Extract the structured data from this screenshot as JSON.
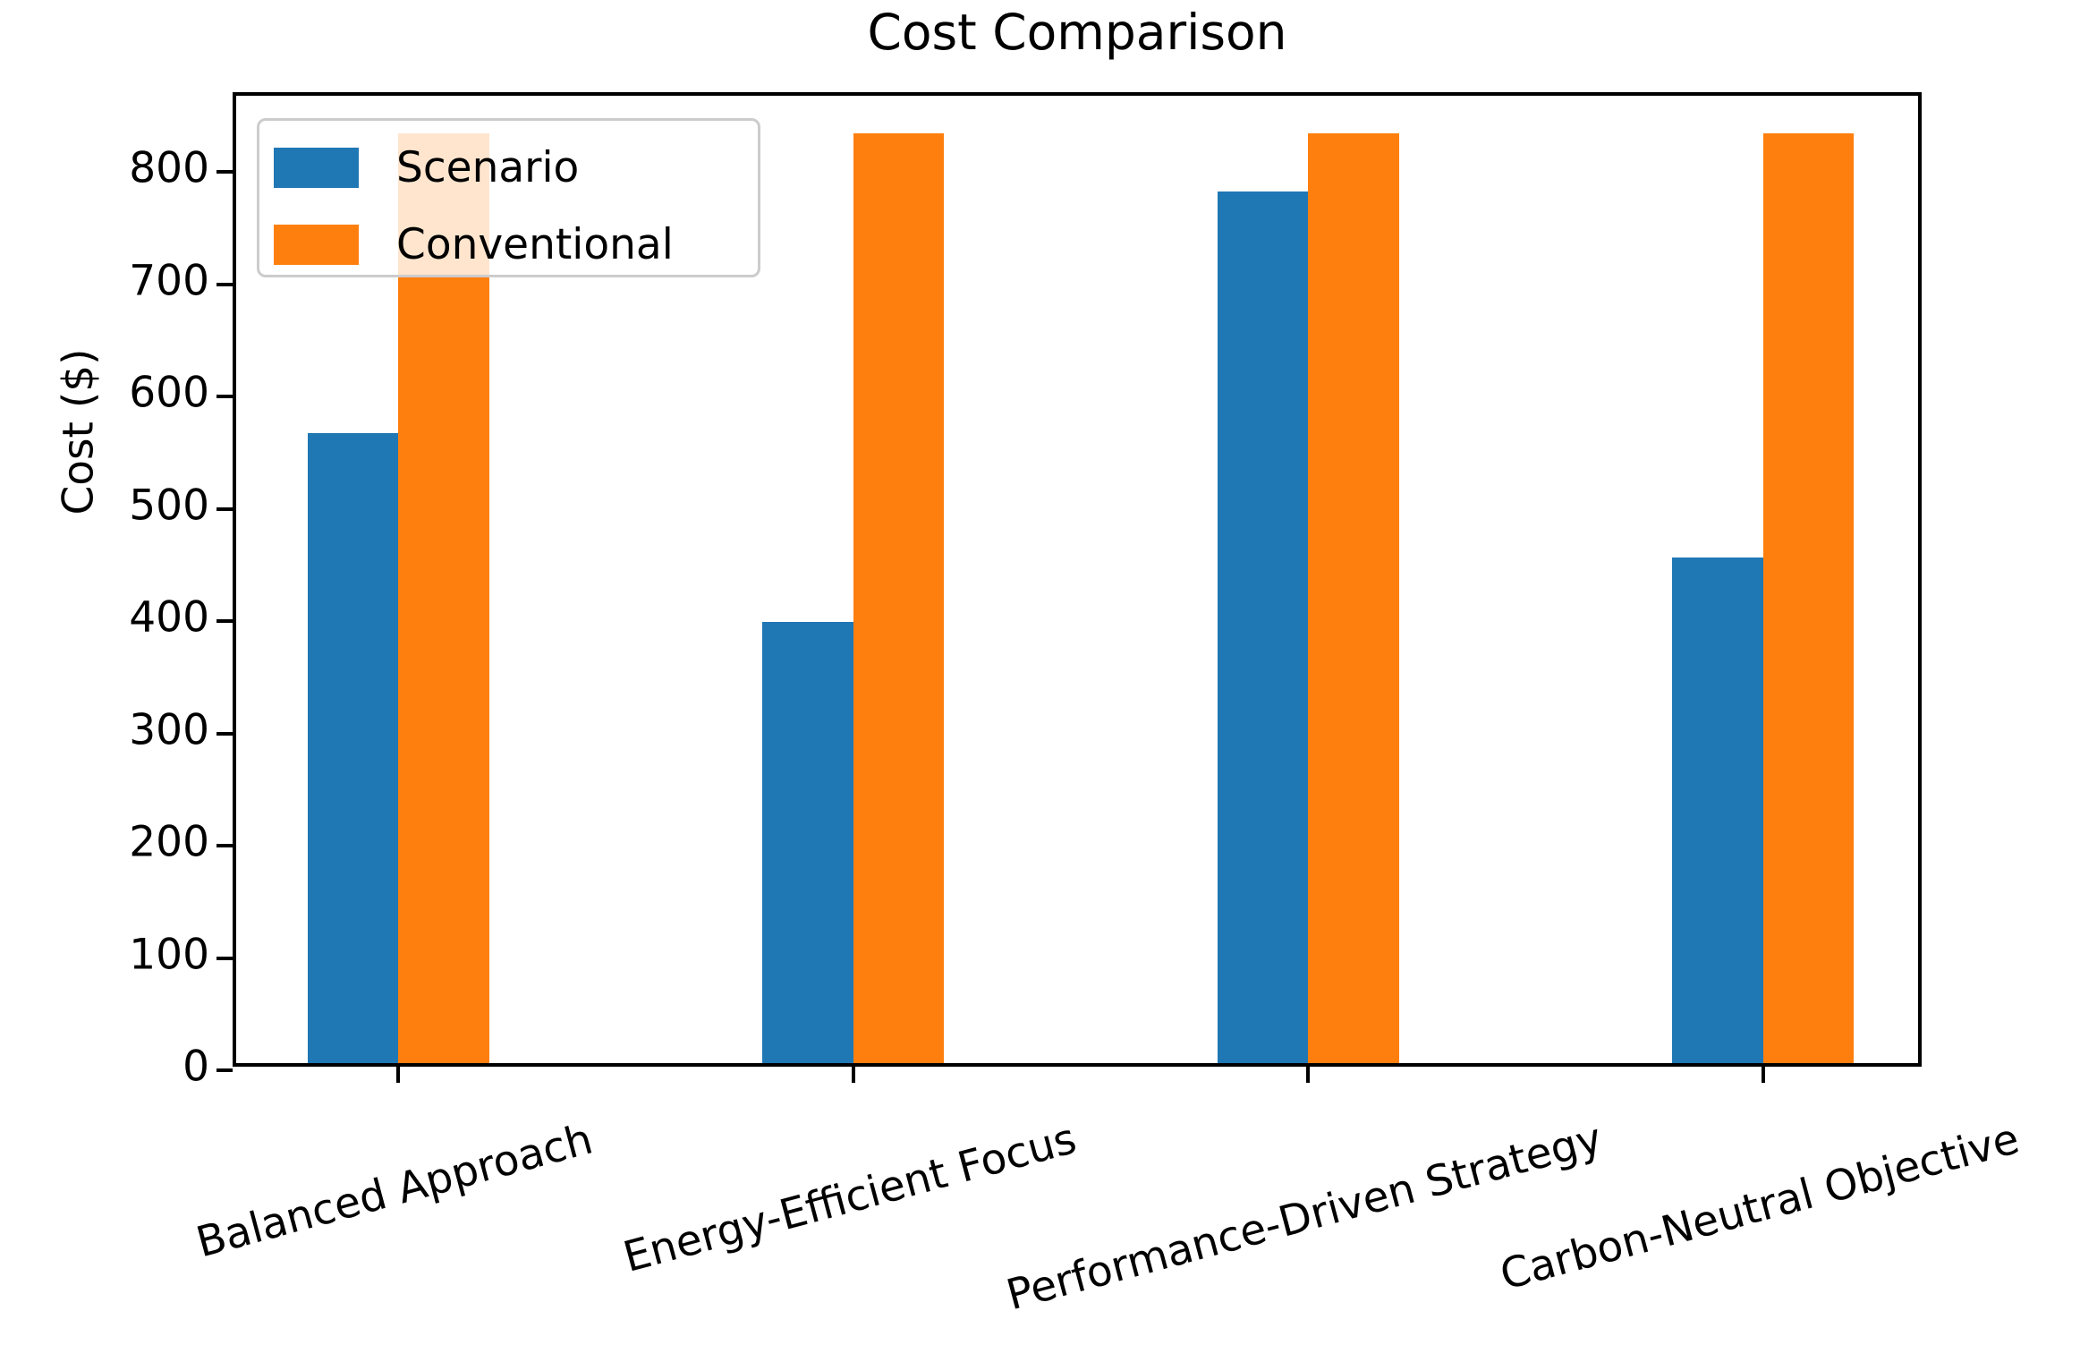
{
  "chart_data": {
    "type": "bar",
    "title": "Cost Comparison",
    "xlabel": "",
    "ylabel": "Cost ($)",
    "categories": [
      "Balanced Approach",
      "Energy-Efficient Focus",
      "Performance-Driven Strategy",
      "Carbon-Neutral Objective"
    ],
    "series": [
      {
        "name": "Scenario",
        "color": "#1f77b4",
        "values": [
          561,
          393,
          776,
          450
        ]
      },
      {
        "name": "Conventional",
        "color": "#ff7f0e",
        "values": [
          828,
          828,
          828,
          828
        ]
      }
    ],
    "ylim": [
      0,
      868
    ],
    "yticks": [
      0,
      100,
      200,
      300,
      400,
      500,
      600,
      700,
      800
    ],
    "xtick_rotation_deg": 15,
    "grid": false,
    "legend_position": "upper left",
    "colors": {
      "axis": "#000000",
      "legend_border": "#cccccc",
      "background": "#ffffff"
    }
  }
}
